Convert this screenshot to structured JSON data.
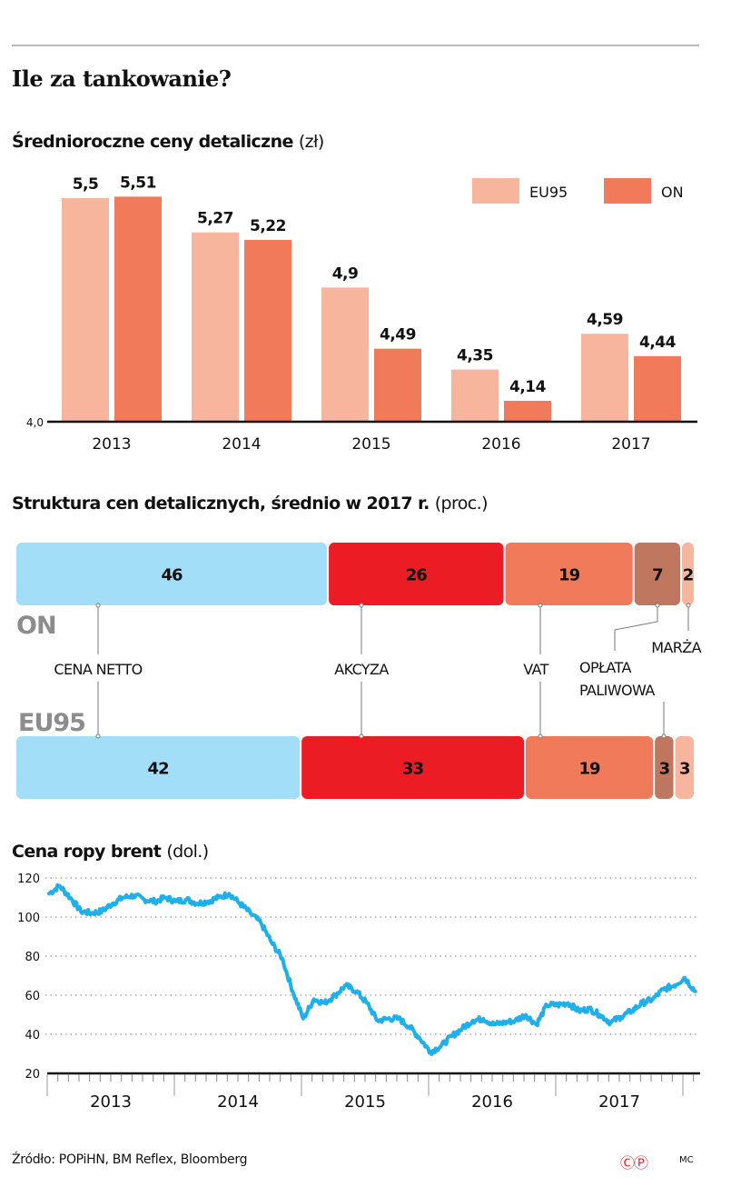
{
  "header": {
    "title": "Ile za tankowanie?"
  },
  "sections": {
    "prices_title": "Średnioroczne ceny detaliczne",
    "prices_unit": "(zł)",
    "structure_title": "Struktura cen detalicznych, średnio w 2017 r.",
    "structure_unit": "(proc.)",
    "brent_title": "Cena ropy brent",
    "brent_unit": "(dol.)"
  },
  "colors": {
    "eu95": "#f7b59e",
    "on": "#f07a5a",
    "netto": "#a3def8",
    "akcyza": "#ec1c24",
    "vat": "#f07a5a",
    "oplata": "#c07760",
    "marza": "#f7b59e",
    "brent_line": "#1fb0ea",
    "label_gray": "#8c8c8c"
  },
  "footer": {
    "source": "Źródło: POPiHN, BM Reflex, Bloomberg",
    "copyright": "ⒸⓅ",
    "author": "MC"
  },
  "chart_data": [
    {
      "type": "bar",
      "title": "Średnioroczne ceny detaliczne (zł)",
      "categories": [
        "2013",
        "2014",
        "2015",
        "2016",
        "2017"
      ],
      "series": [
        {
          "name": "EU95",
          "values": [
            5.5,
            5.27,
            4.9,
            4.35,
            4.59
          ],
          "labels": [
            "5,5",
            "5,27",
            "4,9",
            "4,35",
            "4,59"
          ]
        },
        {
          "name": "ON",
          "values": [
            5.51,
            5.22,
            4.49,
            4.14,
            4.44
          ],
          "labels": [
            "5,51",
            "5,22",
            "4,49",
            "4,14",
            "4,44"
          ]
        }
      ],
      "baseline_label": "4,0",
      "ylim": [
        4.0,
        5.6
      ],
      "legend": "top-right",
      "xlabel": "",
      "ylabel": ""
    },
    {
      "type": "bar",
      "stacked": true,
      "orientation": "horizontal",
      "title": "Struktura cen detalicznych, średnio w 2017 r. (proc.)",
      "categories": [
        "ON",
        "EU95"
      ],
      "components": [
        "CENA NETTO",
        "AKCYZA",
        "VAT",
        "OPŁATA PALIWOWA",
        "MARŻA"
      ],
      "component_labels": [
        {
          "name": "CENA NETTO",
          "lines": [
            "CENA NETTO"
          ]
        },
        {
          "name": "AKCYZA",
          "lines": [
            "AKCYZA"
          ]
        },
        {
          "name": "VAT",
          "lines": [
            "VAT"
          ]
        },
        {
          "name": "OPŁATA PALIWOWA",
          "lines": [
            "OPŁATA",
            "PALIWOWA"
          ]
        },
        {
          "name": "MARŻA",
          "lines": [
            "MARŻA"
          ]
        }
      ],
      "series": [
        {
          "name": "ON",
          "values": [
            46,
            26,
            19,
            7,
            2
          ]
        },
        {
          "name": "EU95",
          "values": [
            42,
            33,
            19,
            3,
            3
          ]
        }
      ]
    },
    {
      "type": "line",
      "title": "Cena ropy brent (dol.)",
      "x_ticks": [
        "2013",
        "2014",
        "2015",
        "2016",
        "2017"
      ],
      "y_ticks": [
        20,
        40,
        60,
        80,
        100,
        120
      ],
      "ylim": [
        20,
        120
      ],
      "xlim": [
        2013.0,
        2018.1
      ],
      "grid": true,
      "series": [
        {
          "name": "Brent",
          "x_start": 2013.0,
          "x_step_months": 1,
          "values": [
            112,
            116,
            110,
            103,
            102,
            103,
            107,
            110,
            111,
            109,
            108,
            110,
            108,
            109,
            107,
            108,
            110,
            112,
            107,
            102,
            97,
            87,
            79,
            62,
            48,
            58,
            56,
            60,
            65,
            62,
            56,
            47,
            48,
            48,
            44,
            38,
            31,
            34,
            39,
            43,
            47,
            48,
            45,
            46,
            47,
            50,
            45,
            55,
            55,
            56,
            52,
            53,
            50,
            46,
            49,
            52,
            56,
            58,
            63,
            65,
            69,
            62
          ]
        }
      ]
    }
  ]
}
